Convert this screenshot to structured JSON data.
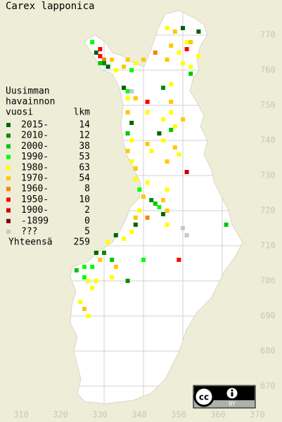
{
  "title": "Carex lapponica",
  "legend": {
    "heading": [
      "Uusimman",
      "havainnon",
      "vuosi"
    ],
    "count_heading": "lkm",
    "entries": [
      {
        "label": "2015-",
        "count": 14,
        "color": "#006400"
      },
      {
        "label": "2010-",
        "count": 12,
        "color": "#008c00"
      },
      {
        "label": "2000-",
        "count": 38,
        "color": "#00c800"
      },
      {
        "label": "1990-",
        "count": 53,
        "color": "#00ff00"
      },
      {
        "label": "1980-",
        "count": 63,
        "color": "#ffff00"
      },
      {
        "label": "1970-",
        "count": 54,
        "color": "#ffc800"
      },
      {
        "label": "1960-",
        "count": 8,
        "color": "#ff8000"
      },
      {
        "label": "1950-",
        "count": 10,
        "color": "#ff0000"
      },
      {
        "label": "1900-",
        "count": 2,
        "color": "#c80000"
      },
      {
        "label": "-1899",
        "count": 0,
        "color": "#800000"
      },
      {
        "label": "???",
        "count": 5,
        "color": "#c8c8c8"
      }
    ],
    "total_label": "Yhteensä",
    "total": 259
  },
  "xticks": [
    310,
    320,
    330,
    340,
    350,
    360,
    370
  ],
  "yticks": [
    670,
    680,
    690,
    700,
    710,
    720,
    730,
    740,
    750,
    760,
    770
  ],
  "badge": {
    "icon": "cc",
    "label": "BY"
  },
  "observations": [
    {
      "x": 327,
      "y": 768,
      "c": 3
    },
    {
      "x": 328,
      "y": 765,
      "c": 0
    },
    {
      "x": 329,
      "y": 766,
      "c": 7
    },
    {
      "x": 329,
      "y": 764,
      "c": 7
    },
    {
      "x": 330,
      "y": 763,
      "c": 6
    },
    {
      "x": 330,
      "y": 762,
      "c": 1
    },
    {
      "x": 329,
      "y": 762,
      "c": 2
    },
    {
      "x": 331,
      "y": 761,
      "c": 0
    },
    {
      "x": 332,
      "y": 763,
      "c": 5
    },
    {
      "x": 333,
      "y": 760,
      "c": 4
    },
    {
      "x": 335,
      "y": 761,
      "c": 5
    },
    {
      "x": 336,
      "y": 763,
      "c": 5
    },
    {
      "x": 337,
      "y": 760,
      "c": 3
    },
    {
      "x": 338,
      "y": 762,
      "c": 4
    },
    {
      "x": 340,
      "y": 763,
      "c": 5
    },
    {
      "x": 346,
      "y": 772,
      "c": 4
    },
    {
      "x": 348,
      "y": 771,
      "c": 5
    },
    {
      "x": 350,
      "y": 772,
      "c": 0
    },
    {
      "x": 351,
      "y": 768,
      "c": 4
    },
    {
      "x": 351,
      "y": 766,
      "c": 7
    },
    {
      "x": 352,
      "y": 768,
      "c": 5
    },
    {
      "x": 347,
      "y": 767,
      "c": 5
    },
    {
      "x": 349,
      "y": 765,
      "c": 4
    },
    {
      "x": 350,
      "y": 762,
      "c": 4
    },
    {
      "x": 352,
      "y": 761,
      "c": 4
    },
    {
      "x": 354,
      "y": 764,
      "c": 4
    },
    {
      "x": 343,
      "y": 765,
      "c": 6
    },
    {
      "x": 346,
      "y": 763,
      "c": 5
    },
    {
      "x": 354,
      "y": 771,
      "c": 0
    },
    {
      "x": 352,
      "y": 759,
      "c": 2
    },
    {
      "x": 335,
      "y": 755,
      "c": 0
    },
    {
      "x": 336,
      "y": 754,
      "c": 3
    },
    {
      "x": 337,
      "y": 754,
      "c": 10
    },
    {
      "x": 336,
      "y": 752,
      "c": 4
    },
    {
      "x": 338,
      "y": 752,
      "c": 5
    },
    {
      "x": 336,
      "y": 748,
      "c": 5
    },
    {
      "x": 337,
      "y": 745,
      "c": 0
    },
    {
      "x": 336,
      "y": 742,
      "c": 2
    },
    {
      "x": 337,
      "y": 740,
      "c": 4
    },
    {
      "x": 336,
      "y": 737,
      "c": 5
    },
    {
      "x": 337,
      "y": 734,
      "c": 4
    },
    {
      "x": 338,
      "y": 732,
      "c": 5
    },
    {
      "x": 338,
      "y": 729,
      "c": 4
    },
    {
      "x": 339,
      "y": 726,
      "c": 3
    },
    {
      "x": 340,
      "y": 724,
      "c": 5
    },
    {
      "x": 341,
      "y": 728,
      "c": 4
    },
    {
      "x": 342,
      "y": 723,
      "c": 1
    },
    {
      "x": 343,
      "y": 722,
      "c": 2
    },
    {
      "x": 344,
      "y": 721,
      "c": 3
    },
    {
      "x": 345,
      "y": 723,
      "c": 5
    },
    {
      "x": 346,
      "y": 726,
      "c": 4
    },
    {
      "x": 346,
      "y": 720,
      "c": 5
    },
    {
      "x": 339,
      "y": 720,
      "c": 4
    },
    {
      "x": 338,
      "y": 718,
      "c": 5
    },
    {
      "x": 338,
      "y": 716,
      "c": 0
    },
    {
      "x": 337,
      "y": 714,
      "c": 4
    },
    {
      "x": 335,
      "y": 712,
      "c": 4
    },
    {
      "x": 333,
      "y": 713,
      "c": 0
    },
    {
      "x": 331,
      "y": 711,
      "c": 4
    },
    {
      "x": 330,
      "y": 708,
      "c": 1
    },
    {
      "x": 332,
      "y": 706,
      "c": 2
    },
    {
      "x": 329,
      "y": 706,
      "c": 5
    },
    {
      "x": 328,
      "y": 708,
      "c": 0
    },
    {
      "x": 327,
      "y": 704,
      "c": 3
    },
    {
      "x": 325,
      "y": 704,
      "c": 3
    },
    {
      "x": 323,
      "y": 703,
      "c": 2
    },
    {
      "x": 325,
      "y": 701,
      "c": 3
    },
    {
      "x": 326,
      "y": 700,
      "c": 4
    },
    {
      "x": 327,
      "y": 698,
      "c": 4
    },
    {
      "x": 324,
      "y": 694,
      "c": 4
    },
    {
      "x": 325,
      "y": 692,
      "c": 5
    },
    {
      "x": 326,
      "y": 690,
      "c": 4
    },
    {
      "x": 328,
      "y": 700,
      "c": 4
    },
    {
      "x": 333,
      "y": 704,
      "c": 5
    },
    {
      "x": 332,
      "y": 701,
      "c": 4
    },
    {
      "x": 336,
      "y": 700,
      "c": 1
    },
    {
      "x": 341,
      "y": 751,
      "c": 7
    },
    {
      "x": 341,
      "y": 748,
      "c": 4
    },
    {
      "x": 345,
      "y": 755,
      "c": 1
    },
    {
      "x": 347,
      "y": 756,
      "c": 4
    },
    {
      "x": 347,
      "y": 751,
      "c": 5
    },
    {
      "x": 347,
      "y": 748,
      "c": 4
    },
    {
      "x": 348,
      "y": 744,
      "c": 4
    },
    {
      "x": 345,
      "y": 746,
      "c": 4
    },
    {
      "x": 344,
      "y": 742,
      "c": 0
    },
    {
      "x": 341,
      "y": 739,
      "c": 5
    },
    {
      "x": 342,
      "y": 737,
      "c": 4
    },
    {
      "x": 345,
      "y": 740,
      "c": 4
    },
    {
      "x": 348,
      "y": 738,
      "c": 5
    },
    {
      "x": 349,
      "y": 736,
      "c": 4
    },
    {
      "x": 346,
      "y": 734,
      "c": 5
    },
    {
      "x": 351,
      "y": 731,
      "c": 8
    },
    {
      "x": 345,
      "y": 719,
      "c": 0
    },
    {
      "x": 346,
      "y": 716,
      "c": 4
    },
    {
      "x": 361,
      "y": 716,
      "c": 2
    },
    {
      "x": 351,
      "y": 713,
      "c": 10
    },
    {
      "x": 350,
      "y": 715,
      "c": 10
    },
    {
      "x": 349,
      "y": 706,
      "c": 7
    },
    {
      "x": 340,
      "y": 706,
      "c": 3
    },
    {
      "x": 341,
      "y": 718,
      "c": 6
    },
    {
      "x": 347,
      "y": 743,
      "c": 2
    },
    {
      "x": 350,
      "y": 746,
      "c": 5
    }
  ]
}
